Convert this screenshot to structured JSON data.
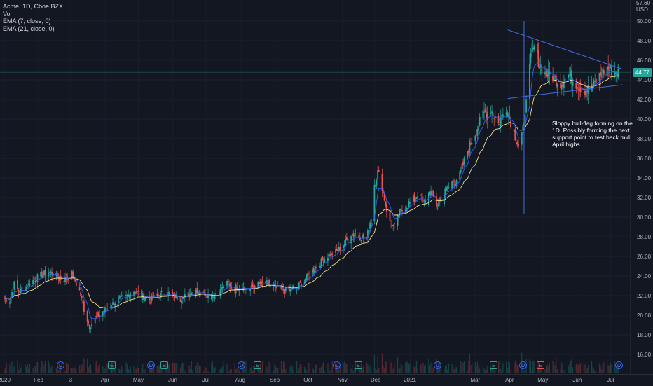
{
  "legend": {
    "symbol": "Acme, 1D, Cboe BZX",
    "vol": "Vol",
    "ema1": "EMA (7, close, 0)",
    "ema2": "EMA (21, close, 0)"
  },
  "price_axis": {
    "currency_top": "57.60",
    "currency": "USD",
    "ticks": [
      "50.00",
      "48.00",
      "46.00",
      "44.00",
      "42.00",
      "40.00",
      "38.00",
      "36.00",
      "34.00",
      "32.00",
      "30.00",
      "28.00",
      "26.00",
      "24.00",
      "22.00",
      "20.00",
      "18.00",
      "16.00"
    ],
    "last_price": "44.77"
  },
  "time_axis": {
    "labels": [
      "2020",
      "Feb",
      "3",
      "Apr",
      "May",
      "Jun",
      "Jul",
      "Aug",
      "Sep",
      "Oct",
      "Nov",
      "Dec",
      "2021",
      "Mar",
      "Apr",
      "May",
      "Jun",
      "Jul"
    ]
  },
  "events": [
    {
      "type": "D",
      "label": "D"
    },
    {
      "type": "E",
      "label": "E"
    },
    {
      "type": "D",
      "label": "D"
    },
    {
      "type": "E",
      "label": "E"
    },
    {
      "type": "D",
      "label": "D"
    },
    {
      "type": "E",
      "label": "E"
    },
    {
      "type": "D",
      "label": "D"
    },
    {
      "type": "E",
      "label": "E"
    },
    {
      "type": "D",
      "label": "D"
    },
    {
      "type": "E",
      "label": "E"
    },
    {
      "type": "D",
      "label": "D"
    },
    {
      "type": "ER",
      "label": "E"
    },
    {
      "type": "D",
      "label": "D"
    }
  ],
  "annotation": "Sloppy bull-flag forming on the 1D. Possibly forming the next support point to test back mid April highs.",
  "colors": {
    "background": "#131722",
    "up": "#26a69a",
    "down": "#ef5350",
    "ema_fast": "#2962ff",
    "ema_slow": "#f7e08a",
    "trendline": "#3f6ee8"
  },
  "chart_data": {
    "type": "candlestick",
    "series_name": "Acme, 1D, Cboe BZX",
    "ylim": [
      15,
      52
    ],
    "x_range": [
      "2020-01-01",
      "2021-07-09"
    ],
    "close_path": [
      [
        "2020-01-01",
        21.8
      ],
      [
        "2020-01-06",
        21.5
      ],
      [
        "2020-01-10",
        23.2
      ],
      [
        "2020-01-14",
        22.4
      ],
      [
        "2020-01-20",
        22.8
      ],
      [
        "2020-01-27",
        23.6
      ],
      [
        "2020-02-03",
        24.1
      ],
      [
        "2020-02-10",
        24.4
      ],
      [
        "2020-02-17",
        24.0
      ],
      [
        "2020-02-24",
        23.6
      ],
      [
        "2020-03-02",
        24.2
      ],
      [
        "2020-03-09",
        22.5
      ],
      [
        "2020-03-13",
        20.6
      ],
      [
        "2020-03-18",
        18.9
      ],
      [
        "2020-03-23",
        19.6
      ],
      [
        "2020-03-30",
        20.4
      ],
      [
        "2020-04-06",
        21.0
      ],
      [
        "2020-04-13",
        21.6
      ],
      [
        "2020-04-20",
        21.9
      ],
      [
        "2020-04-27",
        22.5
      ],
      [
        "2020-05-04",
        22.0
      ],
      [
        "2020-05-11",
        21.6
      ],
      [
        "2020-05-18",
        21.9
      ],
      [
        "2020-05-26",
        22.3
      ],
      [
        "2020-06-01",
        22.0
      ],
      [
        "2020-06-08",
        21.7
      ],
      [
        "2020-06-15",
        22.1
      ],
      [
        "2020-06-22",
        22.6
      ],
      [
        "2020-06-29",
        22.3
      ],
      [
        "2020-07-06",
        21.9
      ],
      [
        "2020-07-13",
        22.4
      ],
      [
        "2020-07-20",
        23.2
      ],
      [
        "2020-07-27",
        22.8
      ],
      [
        "2020-08-03",
        22.9
      ],
      [
        "2020-08-10",
        22.7
      ],
      [
        "2020-08-17",
        23.1
      ],
      [
        "2020-08-24",
        23.3
      ],
      [
        "2020-08-31",
        22.8
      ],
      [
        "2020-09-08",
        22.6
      ],
      [
        "2020-09-14",
        22.5
      ],
      [
        "2020-09-21",
        22.8
      ],
      [
        "2020-09-28",
        23.6
      ],
      [
        "2020-10-05",
        24.5
      ],
      [
        "2020-10-12",
        25.4
      ],
      [
        "2020-10-19",
        26.1
      ],
      [
        "2020-10-26",
        26.4
      ],
      [
        "2020-11-02",
        27.2
      ],
      [
        "2020-11-09",
        28.3
      ],
      [
        "2020-11-16",
        28.0
      ],
      [
        "2020-11-23",
        27.8
      ],
      [
        "2020-11-27",
        30.0
      ],
      [
        "2020-11-30",
        33.4
      ],
      [
        "2020-12-03",
        34.6
      ],
      [
        "2020-12-07",
        33.2
      ],
      [
        "2020-12-10",
        31.3
      ],
      [
        "2020-12-14",
        29.5
      ],
      [
        "2020-12-18",
        29.0
      ],
      [
        "2020-12-22",
        30.2
      ],
      [
        "2020-12-28",
        31.2
      ],
      [
        "2021-01-04",
        31.6
      ],
      [
        "2021-01-08",
        32.5
      ],
      [
        "2021-01-13",
        31.2
      ],
      [
        "2021-01-19",
        32.7
      ],
      [
        "2021-01-25",
        31.3
      ],
      [
        "2021-02-01",
        32.4
      ],
      [
        "2021-02-08",
        33.5
      ],
      [
        "2021-02-15",
        34.2
      ],
      [
        "2021-02-22",
        36.8
      ],
      [
        "2021-03-01",
        38.6
      ],
      [
        "2021-03-08",
        40.5
      ],
      [
        "2021-03-15",
        41.0
      ],
      [
        "2021-03-22",
        39.5
      ],
      [
        "2021-03-29",
        41.2
      ],
      [
        "2021-04-05",
        38.6
      ],
      [
        "2021-04-09",
        37.3
      ],
      [
        "2021-04-14",
        39.2
      ],
      [
        "2021-04-16",
        42.6
      ],
      [
        "2021-04-20",
        46.1
      ],
      [
        "2021-04-23",
        47.4
      ],
      [
        "2021-04-28",
        45.6
      ],
      [
        "2021-05-03",
        44.6
      ],
      [
        "2021-05-10",
        44.3
      ],
      [
        "2021-05-17",
        43.6
      ],
      [
        "2021-05-24",
        44.5
      ],
      [
        "2021-06-01",
        43.5
      ],
      [
        "2021-06-07",
        42.9
      ],
      [
        "2021-06-14",
        43.1
      ],
      [
        "2021-06-21",
        44.4
      ],
      [
        "2021-06-28",
        45.2
      ],
      [
        "2021-07-02",
        44.9
      ],
      [
        "2021-07-08",
        44.77
      ]
    ],
    "annotated_levels": {
      "ema_visible": true
    },
    "trendlines": [
      {
        "name": "upper",
        "from": [
          "2021-04-12",
          48.5
        ],
        "to": [
          "2021-07-08",
          45.1
        ]
      },
      {
        "name": "lower",
        "from": [
          "2021-04-12",
          42.3
        ],
        "to": [
          "2021-07-08",
          43.5
        ]
      }
    ],
    "vertical_marker": {
      "date": "2021-04-14",
      "from": 30.3,
      "to": 50.0
    },
    "last": 44.77,
    "grid": true
  }
}
